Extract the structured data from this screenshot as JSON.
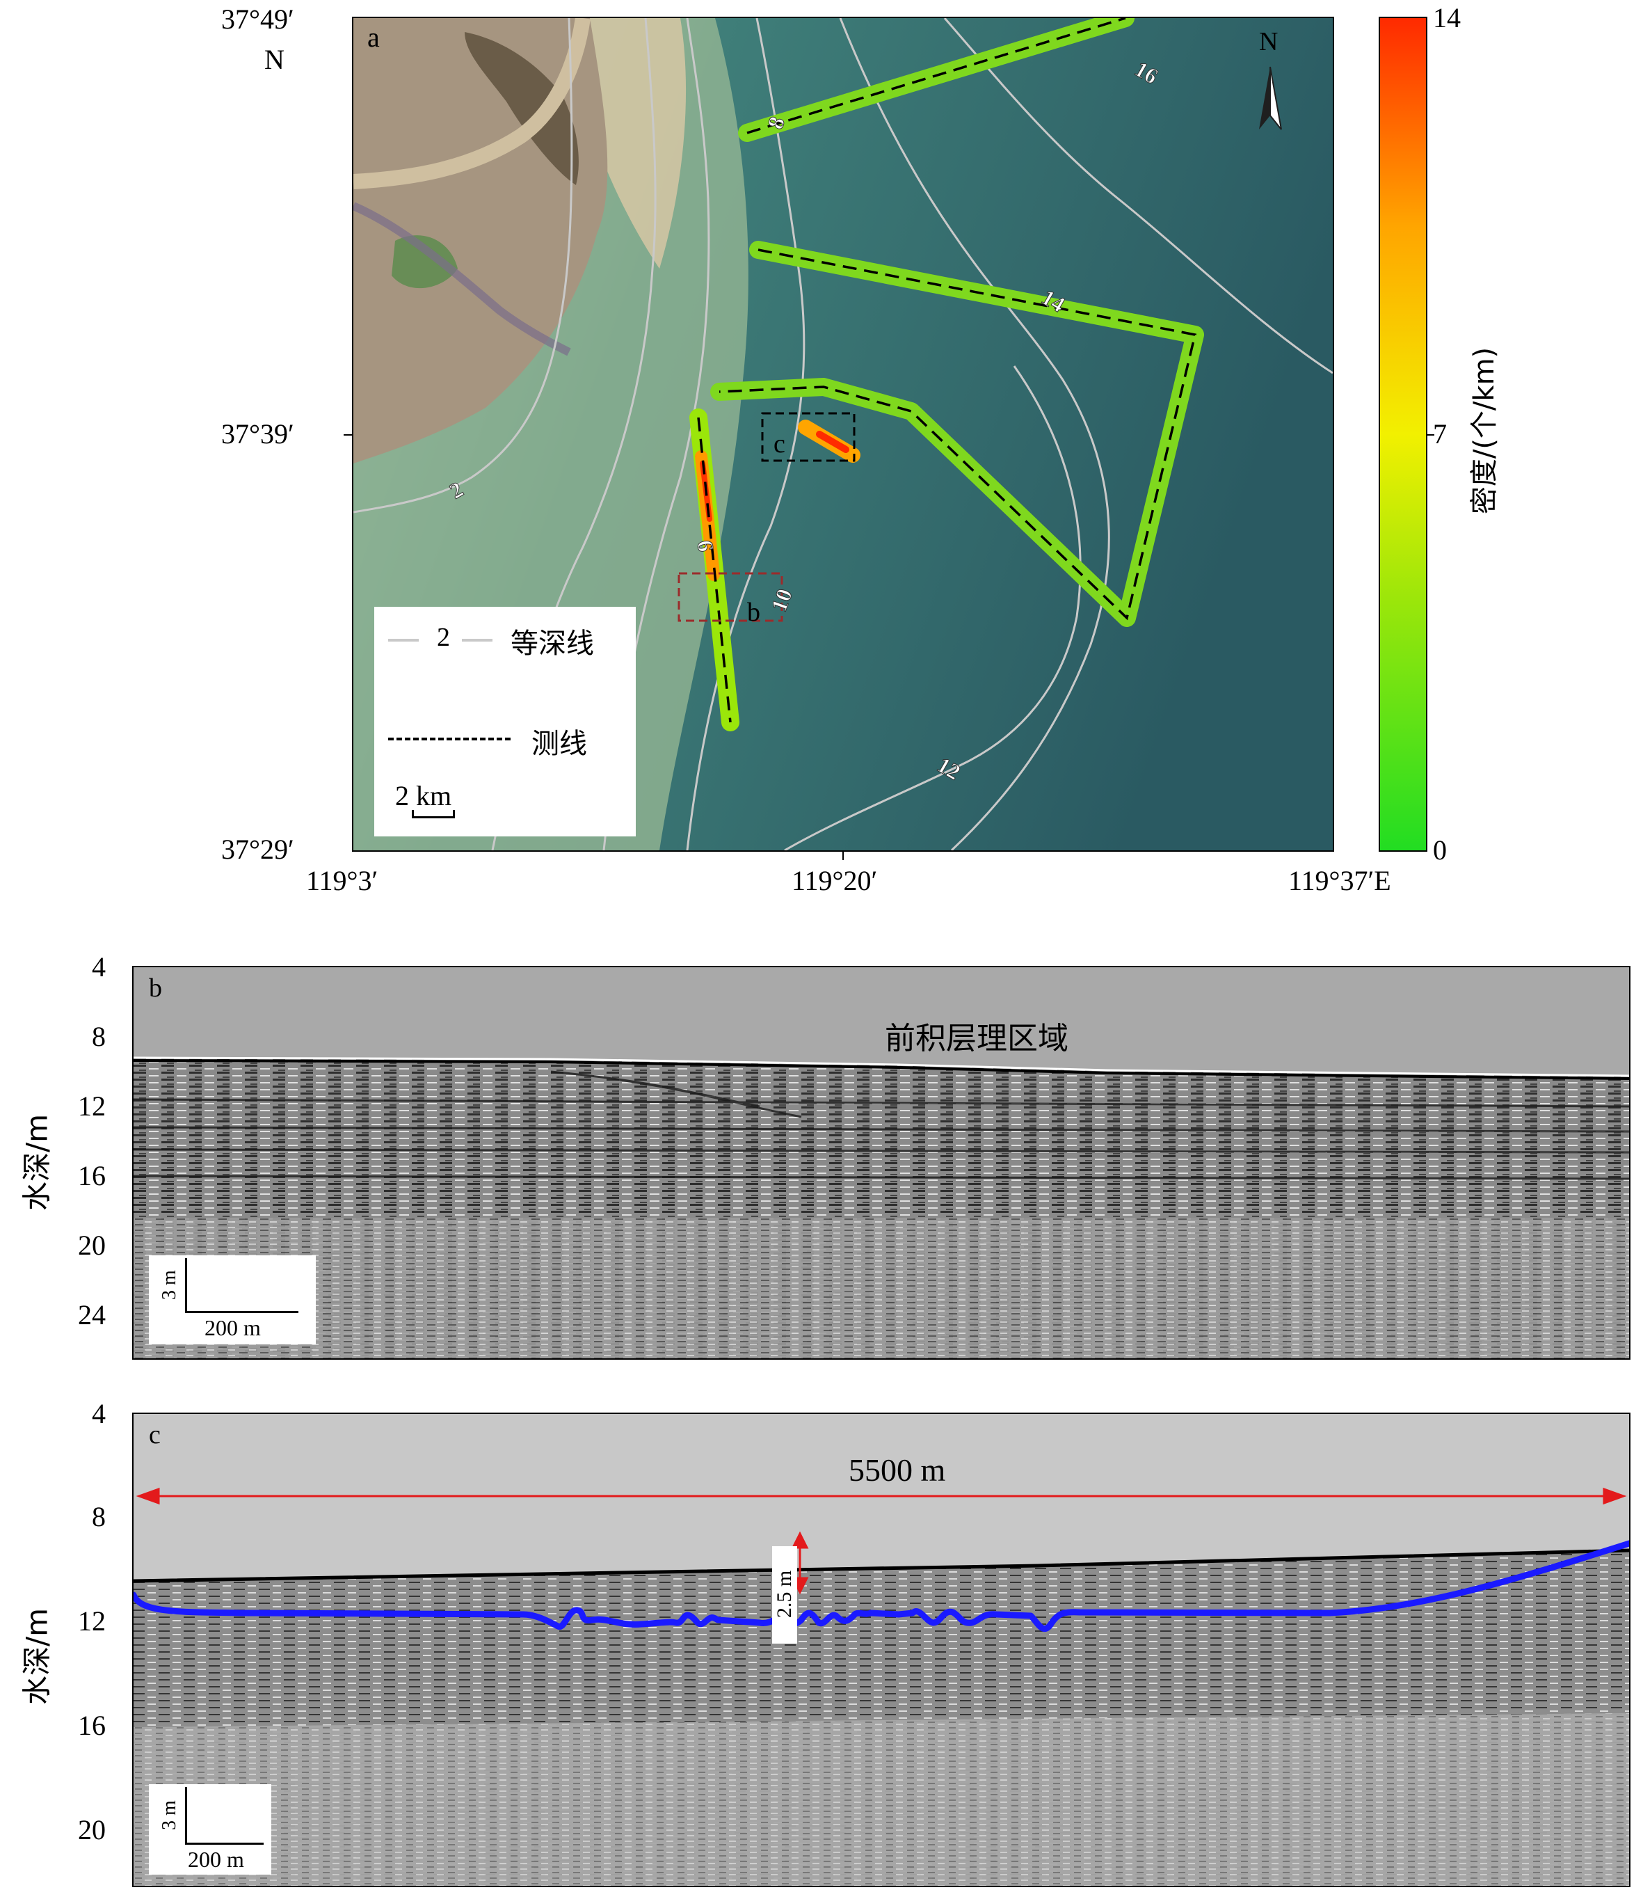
{
  "panel_a": {
    "label": "a",
    "lat_ticks": [
      "37°49′",
      "37°39′",
      "37°29′"
    ],
    "lat_suffix": "N",
    "lon_ticks": [
      "119°3′",
      "119°20′",
      "119°37′E"
    ],
    "north_arrow": {
      "icon": "north-arrow-icon",
      "label": "N"
    },
    "contour_labels": [
      "2",
      "6",
      "8",
      "10",
      "12",
      "14",
      "16"
    ],
    "box_labels": [
      "b",
      "c"
    ],
    "legend": {
      "contour_sample": "2",
      "contour_label": "等深线",
      "survey_label": "测线",
      "scale_text": "2 km"
    },
    "colorbar": {
      "label": "密度/(个/km)",
      "ticks": [
        "14",
        "7",
        "0"
      ],
      "min": 0,
      "max": 14,
      "colors": [
        "#22dd22",
        "#9be60a",
        "#f2f000",
        "#ffa500",
        "#ff2a00"
      ]
    },
    "colors": {
      "contour": "#c9c9c9",
      "survey_line": "#000000",
      "box_b": "#9b2b2b",
      "box_c": "#000000"
    }
  },
  "panel_b": {
    "label": "b",
    "ylabel": "水深/m",
    "yticks": [
      "4",
      "8",
      "12",
      "16",
      "20",
      "24"
    ],
    "y_range": [
      4,
      26.6
    ],
    "annotation": "前积层理区域",
    "scale_v": "3 m",
    "scale_h": "200 m"
  },
  "panel_c": {
    "label": "c",
    "ylabel": "水深/m",
    "yticks": [
      "4",
      "8",
      "12",
      "16",
      "20"
    ],
    "y_range": [
      4,
      22.1
    ],
    "length_annotation": "5500 m",
    "depth_annotation": "2.5 m",
    "scale_v": "3 m",
    "scale_h": "200 m",
    "colors": {
      "horizon": "#1a1aff",
      "arrow": "#e31a1c"
    }
  }
}
